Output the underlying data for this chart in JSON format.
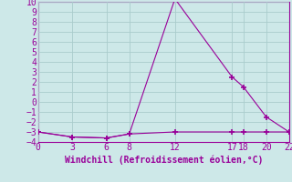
{
  "title": "",
  "xlabel": "Windchill (Refroidissement éolien,°C)",
  "bg_color": "#cde8e8",
  "line_color": "#990099",
  "grid_color": "#aacccc",
  "spine_color": "#8899aa",
  "series1_x": [
    0,
    3,
    6,
    8,
    12,
    17,
    18,
    20,
    22
  ],
  "series1_y": [
    -3,
    -3.5,
    -3.6,
    -3.2,
    -3.0,
    -3.0,
    -3.0,
    -3.0,
    -3.0
  ],
  "series2_x": [
    0,
    3,
    6,
    8,
    12,
    17,
    18,
    20,
    22
  ],
  "series2_y": [
    -3,
    -3.5,
    -3.6,
    -3.2,
    10.3,
    2.5,
    1.5,
    -1.5,
    -3.0
  ],
  "xlim": [
    0,
    22
  ],
  "ylim": [
    -4,
    10
  ],
  "yticks": [
    -4,
    -3,
    -2,
    -1,
    0,
    1,
    2,
    3,
    4,
    5,
    6,
    7,
    8,
    9,
    10
  ],
  "xticks": [
    0,
    3,
    6,
    8,
    12,
    17,
    18,
    20,
    22
  ],
  "marker": "+",
  "markersize": 5,
  "markeredgewidth": 1.2,
  "linewidth": 0.8,
  "tick_fontsize": 7,
  "xlabel_fontsize": 7
}
